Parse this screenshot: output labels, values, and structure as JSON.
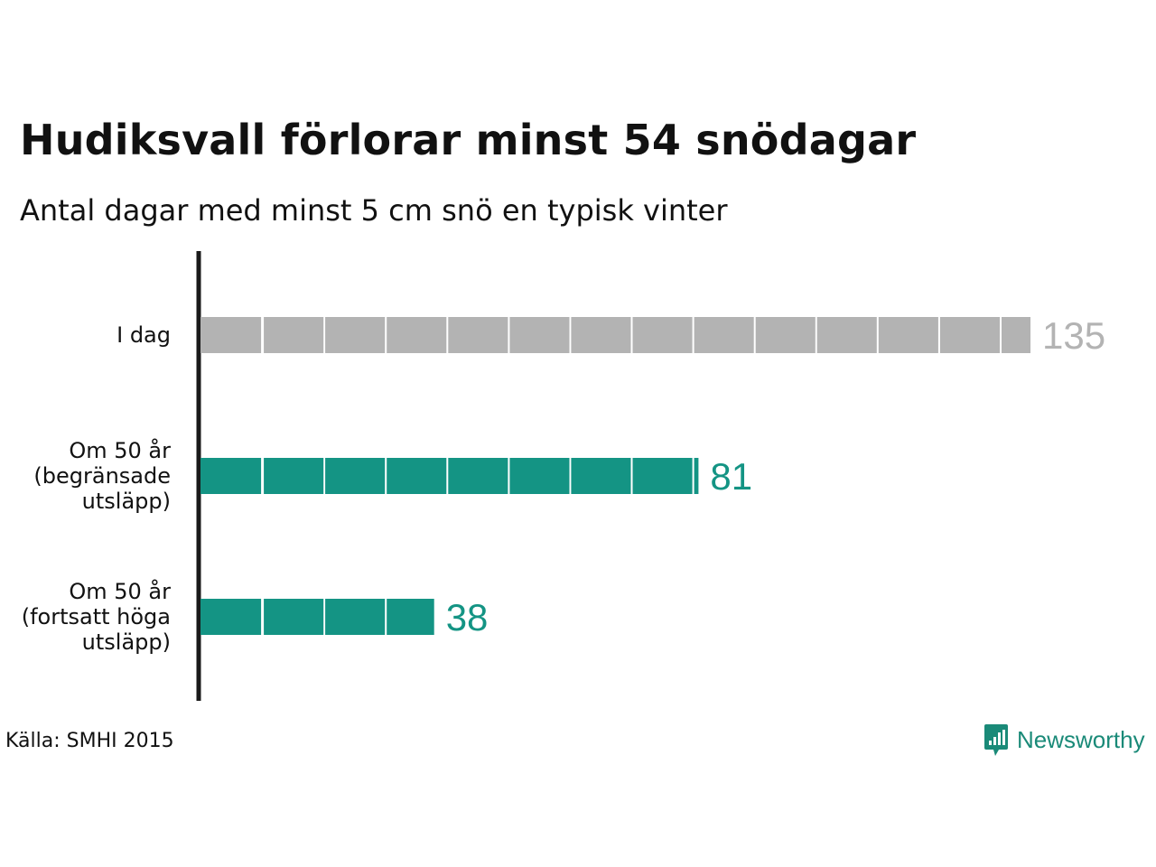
{
  "chart_data": {
    "type": "bar",
    "orientation": "horizontal",
    "title": "Hudiksvall förlorar minst 54 snödagar",
    "subtitle": "Antal dagar med minst 5 cm snö en typisk vinter",
    "categories": [
      "I dag",
      "Om 50 år\n(begränsade\nutsläpp)",
      "Om 50 år\n(fortsatt höga\nutsläpp)"
    ],
    "values": [
      135,
      81,
      38
    ],
    "value_labels": [
      "135",
      "81",
      "38"
    ],
    "colors": [
      "#b3b3b3",
      "#149484",
      "#149484"
    ],
    "label_colors": [
      "#b3b3b3",
      "#149484",
      "#149484"
    ],
    "segment_size": 10,
    "xlim": [
      0,
      135
    ],
    "grid": false,
    "legend": "none"
  },
  "footer": {
    "source": "Källa: SMHI 2015",
    "brand": "Newsworthy"
  },
  "icons": {
    "brand_icon": "newsworthy-logo-icon"
  }
}
